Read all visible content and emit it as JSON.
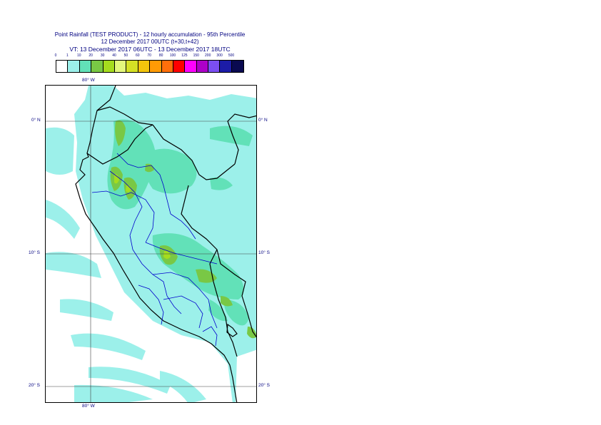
{
  "title": {
    "line1": "Point Rainfall (TEST PRODUCT) - 12 hourly accumulation - 95th Percentile",
    "line2": "12 December 2017 00UTC (t+30,t+42)",
    "line3": "VT: 13 December 2017 06UTC - 13 December 2017 18UTC"
  },
  "legend": {
    "ticks": [
      "0",
      "1",
      "10",
      "20",
      "30",
      "40",
      "50",
      "60",
      "70",
      "80",
      "100",
      "125",
      "150",
      "200",
      "300",
      "500"
    ],
    "colors": [
      "#ffffff",
      "#9cf0ea",
      "#62e1b8",
      "#79c845",
      "#a5dc1e",
      "#e3f77c",
      "#d4e025",
      "#f2c40c",
      "#ff9b05",
      "#ff6f0b",
      "#ff0000",
      "#ff00ff",
      "#ad00c8",
      "#7b4ef2",
      "#1c1ca7",
      "#0a0a50"
    ]
  },
  "map": {
    "lon_labels": {
      "top": "80° W",
      "bottom": "80° W"
    },
    "lat_labels": {
      "equator_left": "0° N",
      "equator_right": "0° N",
      "ten_left": "10° S",
      "ten_right": "10° S",
      "twenty_left": "20° S",
      "twenty_right": "20° S"
    },
    "colors": {
      "ocean_dry": "#ffffff",
      "light": "#9cf0ea",
      "medium": "#62e1b8",
      "green": "#79c845",
      "yellowgreen": "#a5dc1e",
      "border_country": "#000000",
      "border_region": "#0000cc",
      "grid": "#404040"
    }
  }
}
